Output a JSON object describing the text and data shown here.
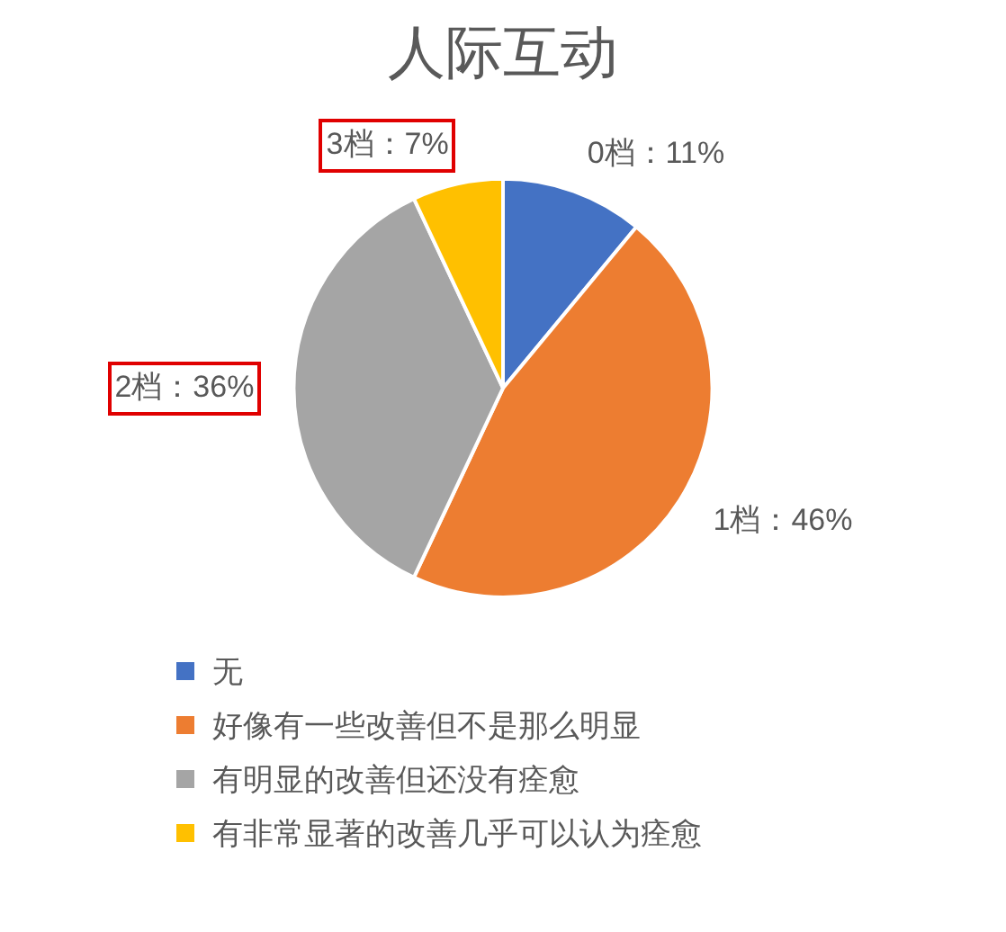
{
  "chart_data": {
    "type": "pie",
    "title": "人际互动",
    "categories": [
      "无",
      "好像有一些改善但不是那么明显",
      "有明显的改善但还没有痊愈",
      "有非常显著的改善几乎可以认为痊愈"
    ],
    "values": [
      11,
      46,
      36,
      7
    ],
    "colors": [
      "#4472c4",
      "#ed7d31",
      "#a5a5a5",
      "#ffc000"
    ],
    "value_labels": [
      "0档：11%",
      "1档：46%",
      "2档：36%",
      "3档：7%"
    ],
    "legend": "bottom"
  }
}
